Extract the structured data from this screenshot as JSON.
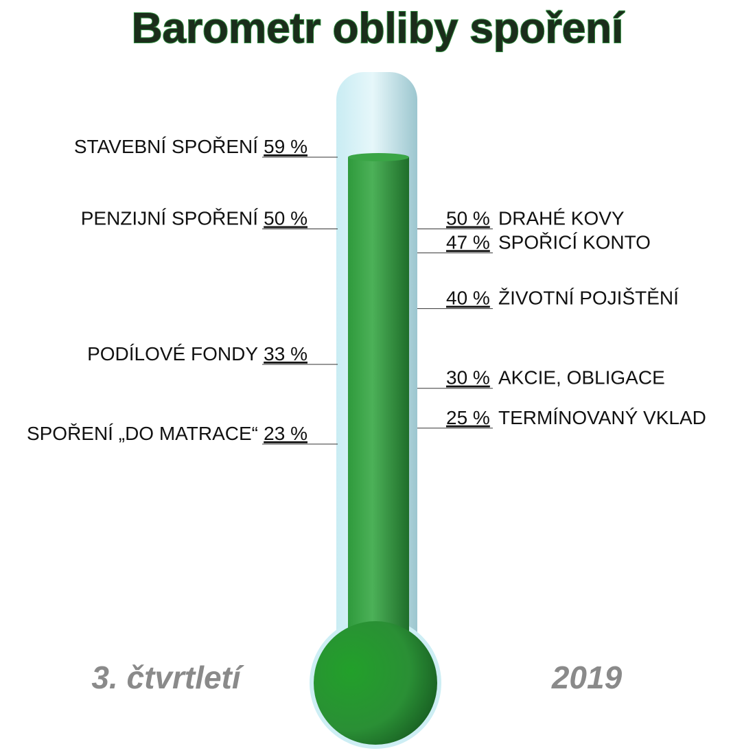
{
  "chart_data": {
    "type": "thermometer",
    "title": "Barometr obliby spoření",
    "footer_left": "3. čtvrtletí",
    "footer_right": "2019",
    "color": "#2e9a3e",
    "series": [
      {
        "categories": [
          "STAVEBNÍ SPOŘENÍ",
          "PENZIJNÍ SPOŘENÍ",
          "PODÍLOVÉ FONDY",
          "SPOŘENÍ „DO MATRACE“"
        ],
        "values": [
          59,
          50,
          33,
          23
        ],
        "value_labels": [
          "59 %",
          "50 %",
          "33 %",
          "23 %"
        ]
      },
      {
        "categories": [
          "DRAHÉ KOVY",
          "SPOŘICÍ KONTO",
          "ŽIVOTNÍ POJIŠTĚNÍ",
          "AKCIE, OBLIGACE",
          "TERMÍNOVANÝ VKLAD"
        ],
        "values": [
          50,
          47,
          40,
          30,
          25
        ],
        "value_labels": [
          "50 %",
          "47 %",
          "40 %",
          "30 %",
          "25 %"
        ]
      }
    ]
  }
}
